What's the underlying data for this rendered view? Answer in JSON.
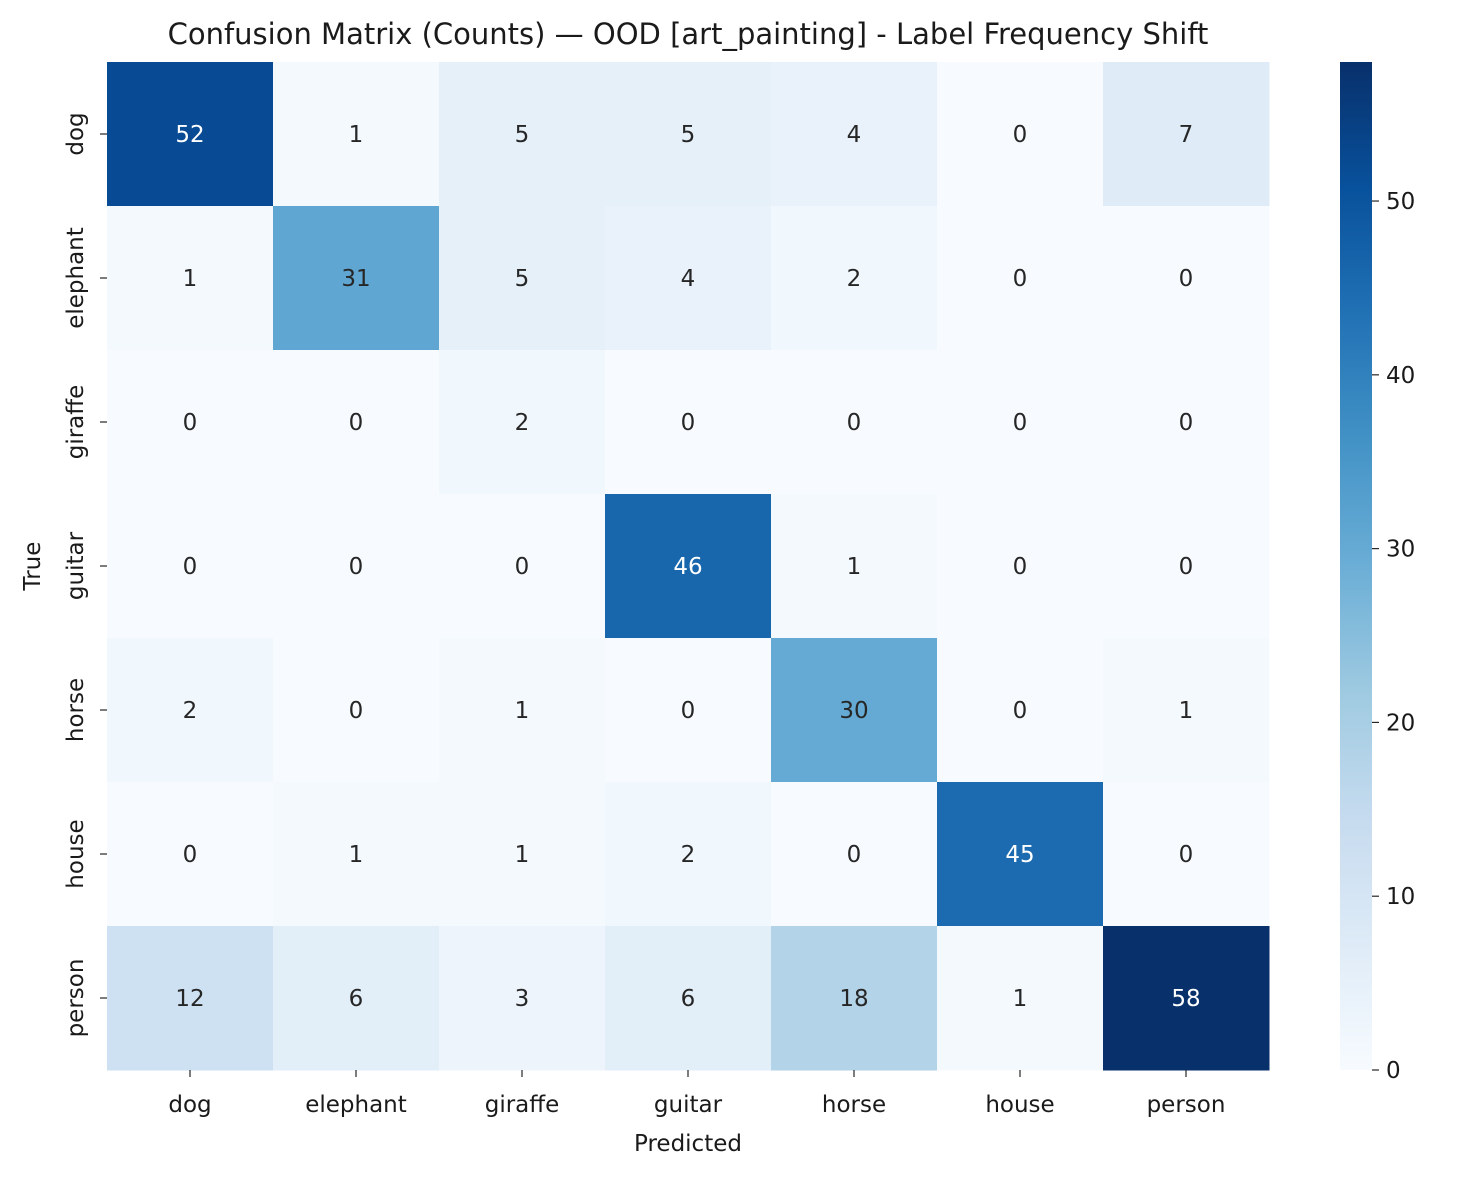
{
  "chart_data": {
    "type": "heatmap",
    "title": "Confusion Matrix (Counts) — OOD [art_painting] - Label Frequency Shift",
    "xlabel": "Predicted",
    "ylabel": "True",
    "x_categories": [
      "dog",
      "elephant",
      "giraffe",
      "guitar",
      "horse",
      "house",
      "person"
    ],
    "y_categories": [
      "dog",
      "elephant",
      "giraffe",
      "guitar",
      "horse",
      "house",
      "person"
    ],
    "values": [
      [
        52,
        1,
        5,
        5,
        4,
        0,
        7
      ],
      [
        1,
        31,
        5,
        4,
        2,
        0,
        0
      ],
      [
        0,
        0,
        2,
        0,
        0,
        0,
        0
      ],
      [
        0,
        0,
        0,
        46,
        1,
        0,
        0
      ],
      [
        2,
        0,
        1,
        0,
        30,
        0,
        1
      ],
      [
        0,
        1,
        1,
        2,
        0,
        45,
        0
      ],
      [
        12,
        6,
        3,
        6,
        18,
        1,
        58
      ]
    ],
    "colorbar": {
      "range": [
        0,
        58
      ],
      "ticks": [
        0,
        10,
        20,
        30,
        40,
        50
      ],
      "colormap": "Blues"
    },
    "annotations": "cell counts"
  }
}
